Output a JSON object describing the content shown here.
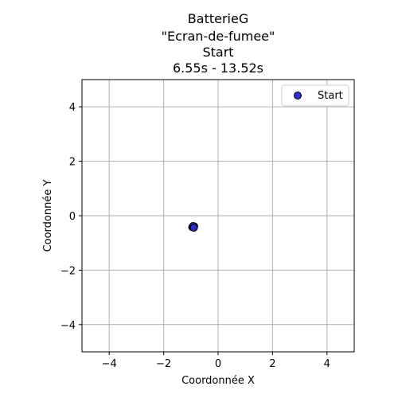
{
  "chart_data": {
    "type": "scatter",
    "title_lines": [
      "BatterieG",
      "\"Ecran-de-fumee\"",
      "Start",
      "6.55s - 13.52s"
    ],
    "xlabel": "Coordonnée X",
    "ylabel": "Coordonnée Y",
    "xlim": [
      -5,
      5
    ],
    "ylim": [
      -5,
      5
    ],
    "xticks": [
      -4,
      -2,
      0,
      2,
      4
    ],
    "yticks": [
      -4,
      -2,
      0,
      2,
      4
    ],
    "grid": true,
    "legend_position": "top-right",
    "series": [
      {
        "name": "Start",
        "color": "#2f2fd0",
        "edge_color": "#000000",
        "points": [
          {
            "x": -0.95,
            "y": -0.42
          },
          {
            "x": -0.93,
            "y": -0.4
          },
          {
            "x": -0.91,
            "y": -0.43
          },
          {
            "x": -0.9,
            "y": -0.41
          },
          {
            "x": -0.88,
            "y": -0.39
          },
          {
            "x": -0.92,
            "y": -0.38
          },
          {
            "x": -0.89,
            "y": -0.44
          }
        ]
      }
    ]
  }
}
